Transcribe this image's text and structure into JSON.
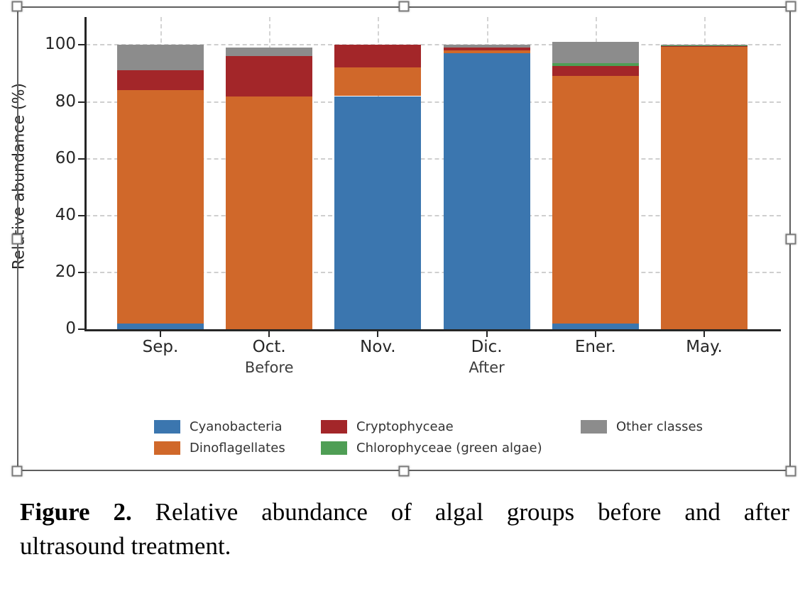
{
  "chart_data": {
    "type": "bar",
    "stacked": true,
    "categories": [
      "Sep.",
      "Oct.",
      "Nov.",
      "Dic.",
      "Ener.",
      "May."
    ],
    "group_labels": [
      {
        "label": "Before",
        "category_index": 1
      },
      {
        "label": "After",
        "category_index": 3
      }
    ],
    "series": [
      {
        "name": "Cyanobacteria",
        "color": "#3b76af",
        "values": [
          2,
          0,
          82,
          97,
          2,
          0
        ]
      },
      {
        "name": "Dinoflagellates",
        "color": "#d0682a",
        "values": [
          82,
          82,
          10,
          1,
          87,
          99.3
        ]
      },
      {
        "name": "Cryptophyceae",
        "color": "#a32629",
        "values": [
          7,
          14,
          8,
          1.2,
          3.5,
          0.2
        ]
      },
      {
        "name": "Chlorophyceae (green algae)",
        "color": "#4f9e55",
        "values": [
          0,
          0,
          0,
          0,
          1,
          0.4
        ]
      },
      {
        "name": "Other classes",
        "color": "#8c8c8c",
        "values": [
          9,
          3,
          0,
          0.8,
          7.5,
          0.1
        ]
      }
    ],
    "title": "",
    "xlabel": "",
    "ylabel": "Relative abundance (%)",
    "yticks": [
      0,
      20,
      40,
      60,
      80,
      100
    ],
    "ylim": [
      0,
      110
    ],
    "grid": "dashed-horizontal-and-vertical",
    "legend_position": "bottom",
    "legend_columns": [
      [
        0,
        1
      ],
      [
        2,
        3
      ],
      [
        4
      ]
    ]
  },
  "caption": {
    "label": "Figure 2.",
    "line1_rest": " Relative abundance of algal groups before and after",
    "line2": "ultrasound treatment."
  },
  "selection": {
    "handle_names": [
      "top-left",
      "top-middle",
      "top-right",
      "middle-left",
      "middle-right",
      "bottom-left",
      "bottom-middle",
      "bottom-right"
    ]
  }
}
